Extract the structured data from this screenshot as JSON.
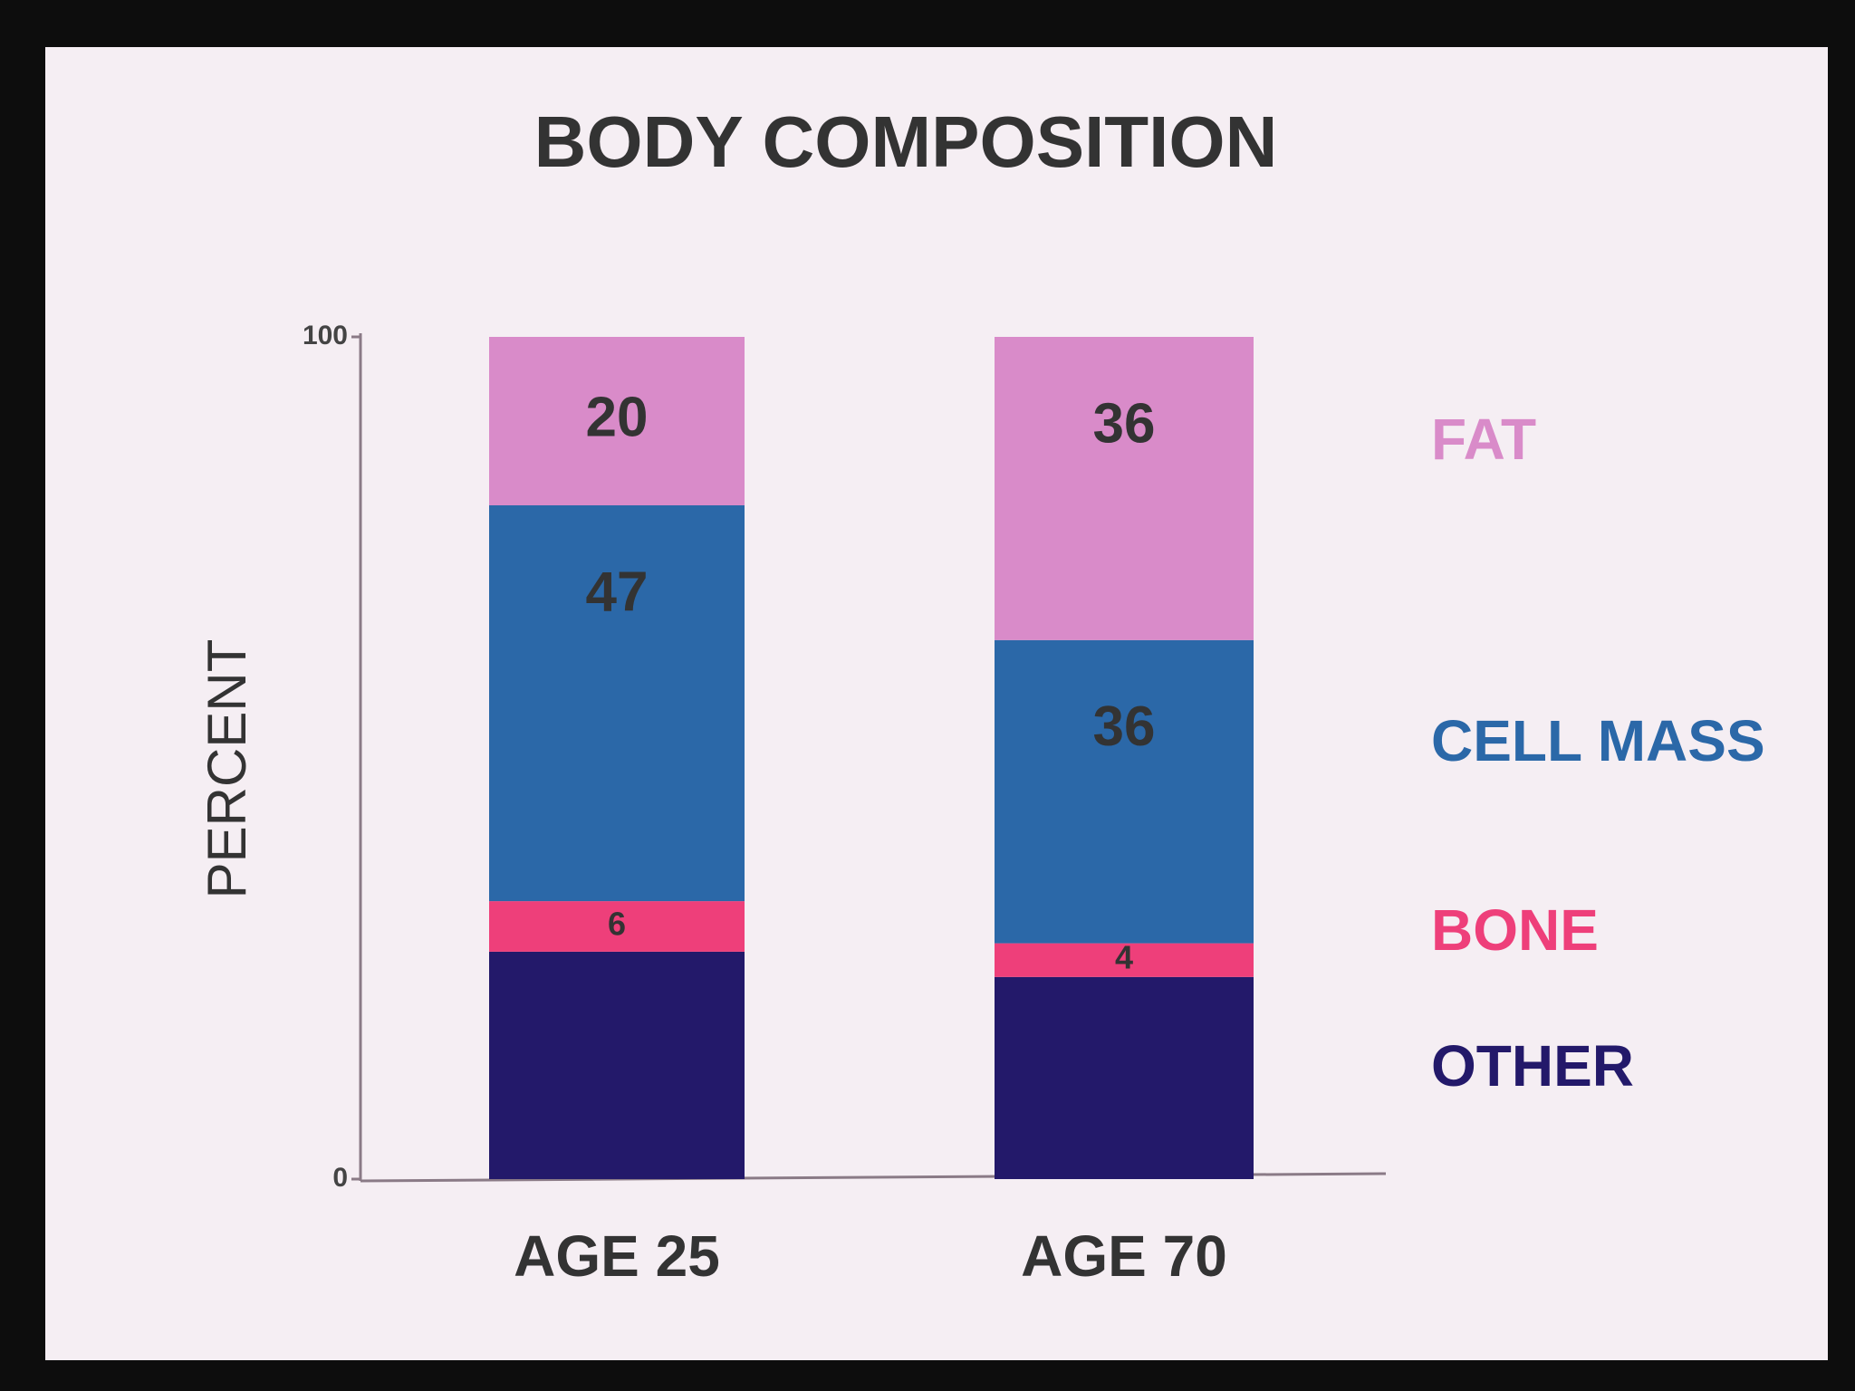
{
  "chart_data": {
    "type": "stacked_bar",
    "title": "BODY COMPOSITION",
    "y_label": "PERCENT",
    "categories": [
      "AGE 25",
      "AGE 70"
    ],
    "series": [
      {
        "name": "OTHER",
        "color": "#23196a",
        "values": [
          27,
          24
        ],
        "data_labels": false
      },
      {
        "name": "BONE",
        "color": "#ee3f7a",
        "values": [
          6,
          4
        ],
        "data_labels": true
      },
      {
        "name": "CELL MASS",
        "color": "#2b68a8",
        "values": [
          47,
          36
        ],
        "data_labels": true
      },
      {
        "name": "FAT",
        "color": "#d98bc9",
        "values": [
          20,
          36
        ],
        "data_labels": true
      }
    ],
    "ylim": [
      0,
      100
    ],
    "yticks": [
      0,
      100
    ],
    "grid": false,
    "legend": "right"
  }
}
